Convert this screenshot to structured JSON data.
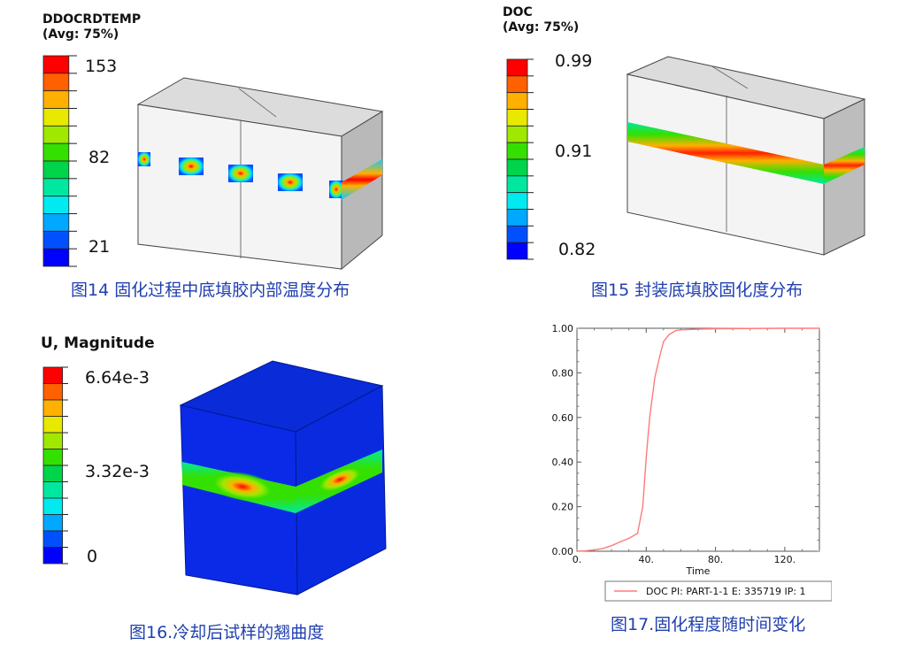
{
  "colors": {
    "scale": [
      "#0000ff",
      "#0050ff",
      "#00a8ff",
      "#00eaf0",
      "#00e8a0",
      "#00d44a",
      "#34e000",
      "#a0e800",
      "#e8e800",
      "#ffb000",
      "#ff6000",
      "#ff0000"
    ],
    "caption": "#1f3fb0",
    "curve": "#ff7a7a",
    "model_side": "#b9b9b9",
    "model_face": "#f2f2f2"
  },
  "fig14": {
    "legend_title": "DDOCRDTEMP",
    "legend_subtitle": "(Avg: 75%)",
    "ticks": [
      "153",
      "82",
      "21"
    ],
    "caption": "图14 固化过程中底填胶内部温度分布"
  },
  "fig15": {
    "legend_title": "DOC",
    "legend_subtitle": "(Avg: 75%)",
    "ticks": [
      "0.99",
      "0.91",
      "0.82"
    ],
    "caption": "图15 封装底填胶固化度分布"
  },
  "fig16": {
    "legend_title": "U, Magnitude",
    "ticks": [
      "6.64e-3",
      "3.32e-3",
      "0"
    ],
    "caption": "图16.冷却后试样的翘曲度"
  },
  "fig17": {
    "caption": "图17.固化程度随时间变化",
    "chart_data": {
      "type": "line",
      "xlabel": "Time",
      "ylabel": "",
      "x_ticks": [
        "0.",
        "40.",
        "80.",
        "120."
      ],
      "y_ticks": [
        "0.00",
        "0.20",
        "0.40",
        "0.60",
        "0.80",
        "1.00"
      ],
      "xlim": [
        0,
        140
      ],
      "ylim": [
        0,
        1
      ],
      "legend": "bottom",
      "series": [
        {
          "name": "DOC PI: PART-1-1 E: 335719 IP: 1",
          "x": [
            0,
            5,
            10,
            15,
            20,
            25,
            30,
            35,
            38,
            40,
            42,
            45,
            48,
            50,
            53,
            57,
            60,
            70,
            80,
            100,
            120,
            140
          ],
          "y": [
            0.0,
            0.002,
            0.006,
            0.012,
            0.025,
            0.042,
            0.058,
            0.08,
            0.2,
            0.42,
            0.6,
            0.78,
            0.88,
            0.94,
            0.97,
            0.99,
            0.993,
            0.996,
            0.998,
            0.999,
            1.0,
            1.0
          ]
        }
      ]
    }
  }
}
